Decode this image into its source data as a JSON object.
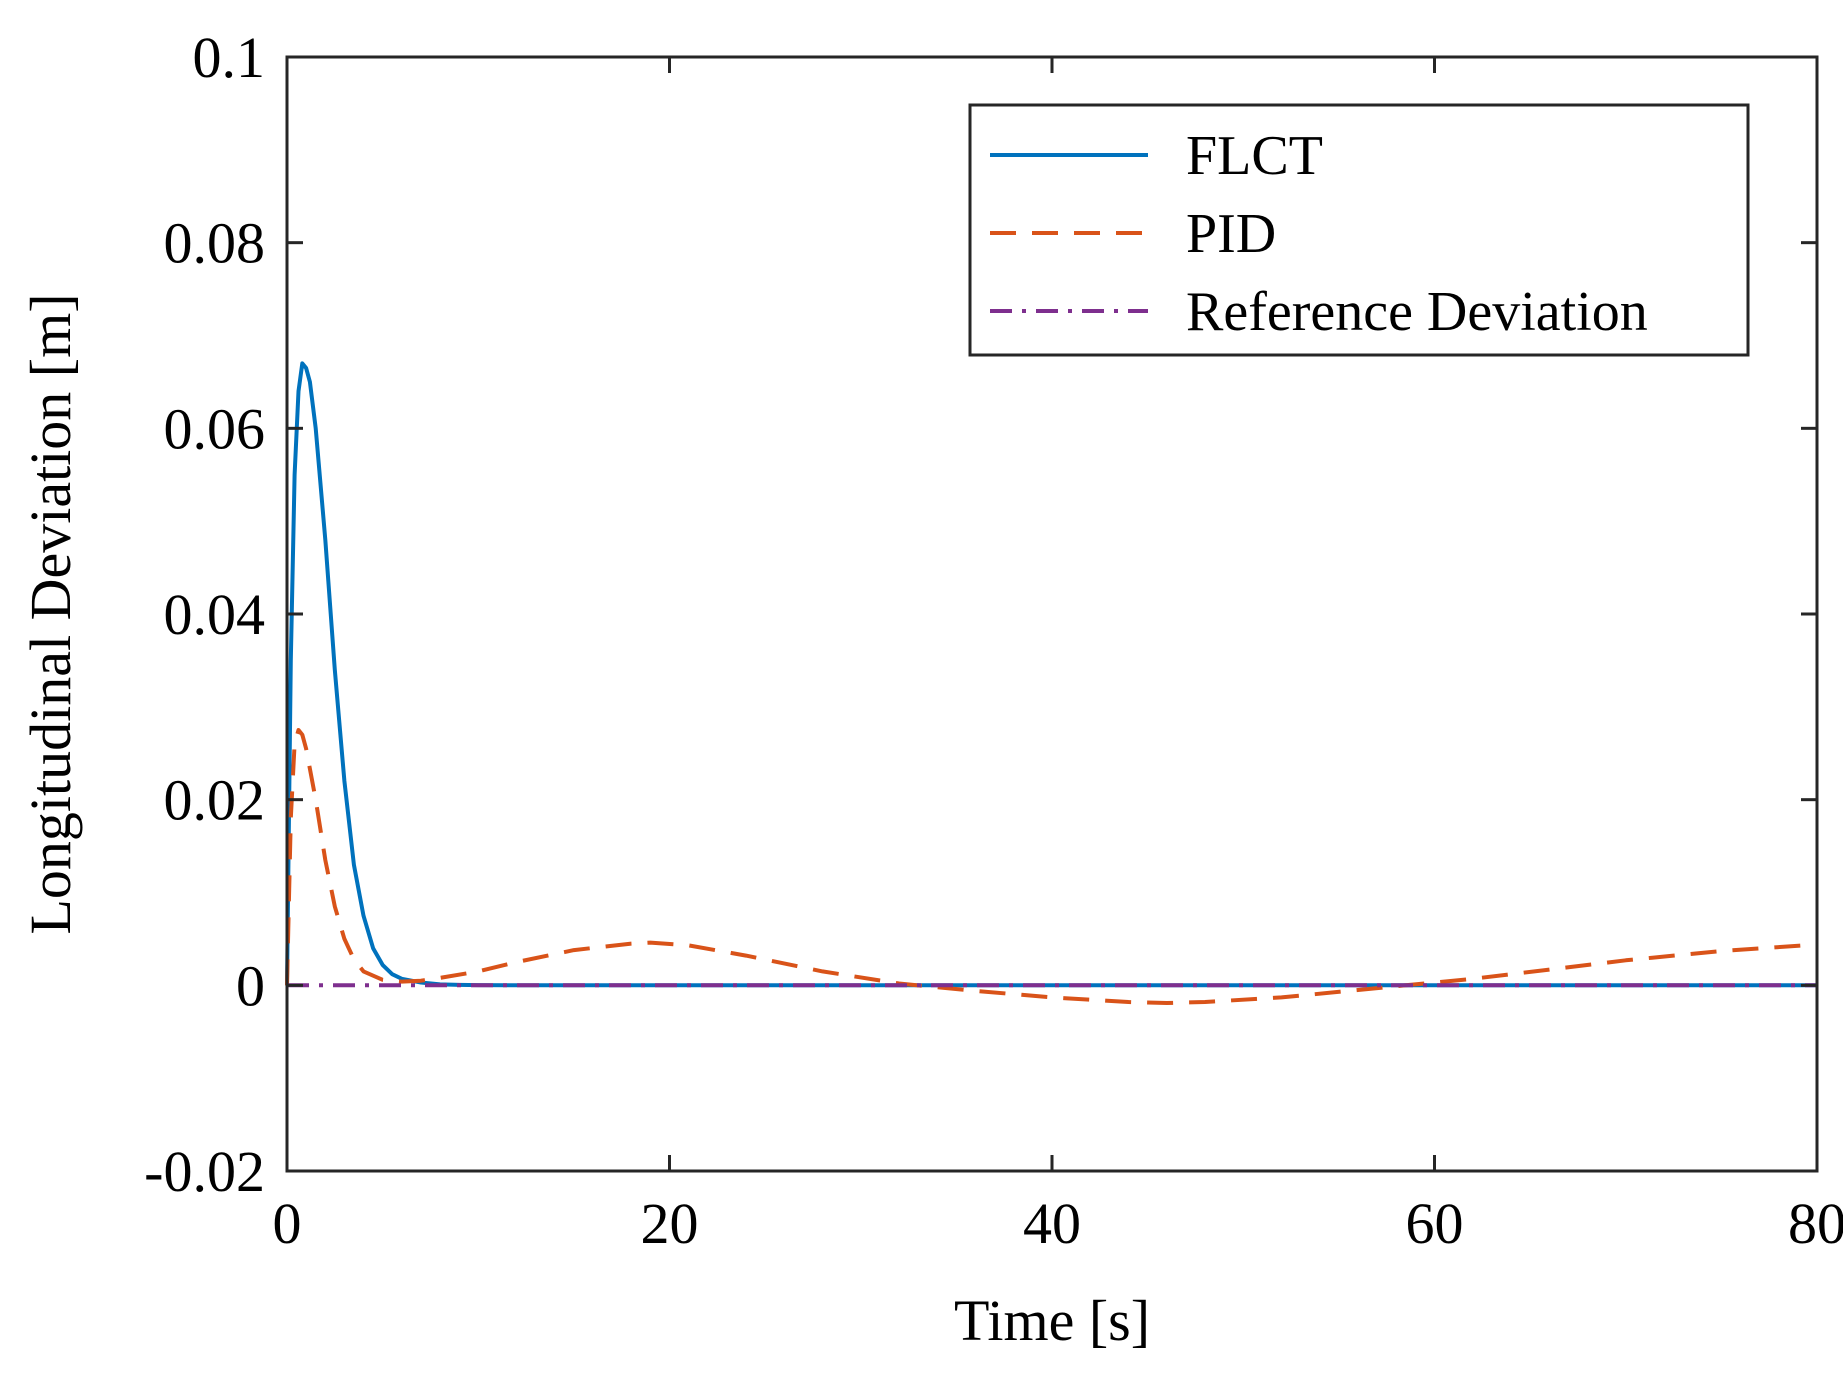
{
  "chart_data": {
    "type": "line",
    "title": "",
    "xlabel": "Time [s]",
    "ylabel": "Longitudinal Deviation [m]",
    "xlim": [
      0,
      80
    ],
    "ylim": [
      -0.02,
      0.1
    ],
    "xticks": [
      0,
      20,
      40,
      60,
      80
    ],
    "xtick_labels": [
      "0",
      "20",
      "40",
      "60",
      "80"
    ],
    "yticks": [
      -0.02,
      0,
      0.02,
      0.04,
      0.06,
      0.08,
      0.1
    ],
    "ytick_labels": [
      "-0.02",
      "0",
      "0.02",
      "0.04",
      "0.06",
      "0.08",
      "0.1"
    ],
    "grid": false,
    "legend_position": "top-right",
    "series": [
      {
        "name": "FLCT",
        "color": "#0072BD",
        "style": "solid",
        "x": [
          0,
          0.2,
          0.4,
          0.6,
          0.8,
          1.0,
          1.2,
          1.5,
          2.0,
          2.5,
          3.0,
          3.5,
          4.0,
          4.5,
          5.0,
          5.5,
          6.0,
          7.0,
          8.0,
          9.0,
          10.0,
          12.0,
          15.0,
          20.0,
          30.0,
          40.0,
          50.0,
          60.0,
          70.0,
          80.0
        ],
        "y": [
          0,
          0.035,
          0.055,
          0.064,
          0.067,
          0.0665,
          0.065,
          0.06,
          0.048,
          0.034,
          0.022,
          0.013,
          0.0075,
          0.004,
          0.0022,
          0.0012,
          0.0007,
          0.0003,
          0.0001,
          5e-05,
          2e-05,
          0,
          0,
          0,
          0,
          0,
          0,
          0,
          0,
          0
        ]
      },
      {
        "name": "PID",
        "color": "#D95319",
        "style": "dashed",
        "x": [
          0,
          0.2,
          0.4,
          0.6,
          0.8,
          1.0,
          1.5,
          2.0,
          2.5,
          3.0,
          3.5,
          4.0,
          5.0,
          6.0,
          7.0,
          8.0,
          10.0,
          12.0,
          15.0,
          18.0,
          19.0,
          21.0,
          24.0,
          28.0,
          32.0,
          34.0,
          36.0,
          40.0,
          44.0,
          46.0,
          48.0,
          52.0,
          56.0,
          58.5,
          62.0,
          66.0,
          70.0,
          75.0,
          80.0
        ],
        "y": [
          0,
          0.018,
          0.026,
          0.0275,
          0.027,
          0.0255,
          0.02,
          0.0135,
          0.0085,
          0.005,
          0.0028,
          0.0015,
          0.0006,
          0.0004,
          0.0005,
          0.0008,
          0.0015,
          0.0025,
          0.0038,
          0.0045,
          0.0046,
          0.0043,
          0.0032,
          0.0015,
          0.0002,
          -0.0002,
          -0.0006,
          -0.0013,
          -0.0018,
          -0.0019,
          -0.0018,
          -0.0013,
          -0.0005,
          0.0,
          0.0007,
          0.0017,
          0.0027,
          0.0037,
          0.0044
        ]
      },
      {
        "name": "Reference Deviation",
        "color": "#7E2F8E",
        "style": "dashdot",
        "x": [
          0,
          80
        ],
        "y": [
          0,
          0
        ]
      }
    ]
  }
}
